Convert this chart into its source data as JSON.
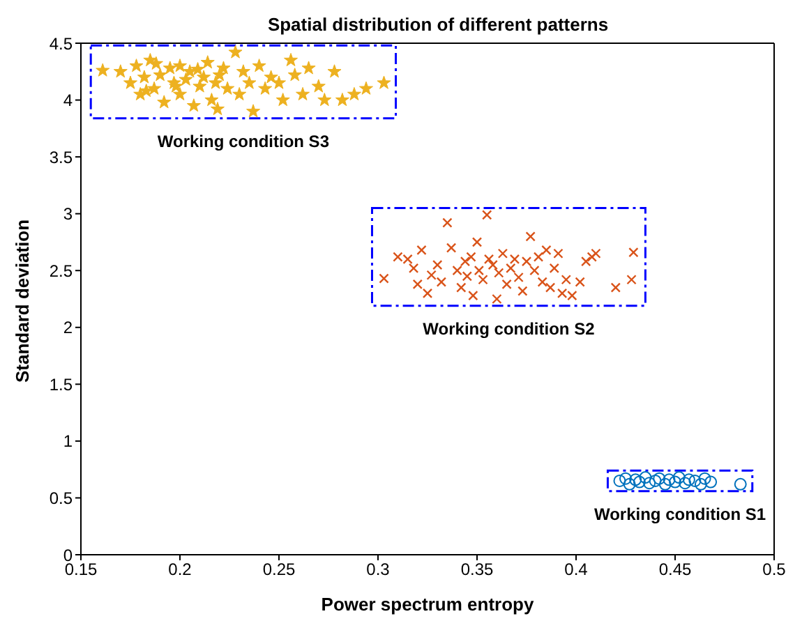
{
  "chart_data": {
    "type": "scatter",
    "title": "Spatial distribution of different patterns",
    "xlabel": "Power spectrum entropy",
    "ylabel": "Standard deviation",
    "xlim": [
      0.15,
      0.5
    ],
    "xticks": [
      0.15,
      0.2,
      0.25,
      0.3,
      0.35,
      0.4,
      0.45,
      0.5
    ],
    "ylim": [
      0,
      4.5
    ],
    "yticks": [
      0,
      0.5,
      1,
      1.5,
      2,
      2.5,
      3,
      3.5,
      4,
      4.5
    ],
    "grid": false,
    "legend": false,
    "series": [
      {
        "color": "#edb120",
        "marker": "star",
        "x": [
          0.161,
          0.17,
          0.175,
          0.178,
          0.18,
          0.182,
          0.185,
          0.187,
          0.19,
          0.192,
          0.195,
          0.197,
          0.2,
          0.2,
          0.203,
          0.205,
          0.207,
          0.21,
          0.212,
          0.214,
          0.216,
          0.218,
          0.219,
          0.22,
          0.222,
          0.224,
          0.228,
          0.23,
          0.232,
          0.235,
          0.237,
          0.24,
          0.243,
          0.246,
          0.25,
          0.252,
          0.256,
          0.258,
          0.262,
          0.265,
          0.27,
          0.273,
          0.278,
          0.282,
          0.288,
          0.294,
          0.303,
          0.183,
          0.188,
          0.198,
          0.209
        ],
        "values": [
          4.26,
          4.25,
          4.15,
          4.3,
          4.05,
          4.2,
          4.35,
          4.1,
          4.22,
          3.98,
          4.28,
          4.15,
          4.3,
          4.05,
          4.18,
          4.25,
          3.95,
          4.12,
          4.2,
          4.33,
          4.0,
          4.15,
          3.92,
          4.22,
          4.28,
          4.1,
          4.42,
          4.05,
          4.25,
          4.15,
          3.9,
          4.3,
          4.1,
          4.2,
          4.15,
          4.0,
          4.35,
          4.22,
          4.05,
          4.28,
          4.12,
          4.0,
          4.25,
          4.0,
          4.05,
          4.1,
          4.15,
          4.08,
          4.32,
          4.12,
          4.27
        ]
      },
      {
        "color": "#d95319",
        "marker": "cross",
        "x": [
          0.303,
          0.31,
          0.315,
          0.318,
          0.32,
          0.322,
          0.325,
          0.327,
          0.33,
          0.332,
          0.335,
          0.337,
          0.34,
          0.342,
          0.344,
          0.345,
          0.347,
          0.348,
          0.35,
          0.351,
          0.353,
          0.355,
          0.356,
          0.358,
          0.36,
          0.361,
          0.363,
          0.365,
          0.367,
          0.369,
          0.371,
          0.373,
          0.375,
          0.377,
          0.379,
          0.381,
          0.383,
          0.385,
          0.387,
          0.389,
          0.391,
          0.393,
          0.395,
          0.398,
          0.402,
          0.405,
          0.408,
          0.41,
          0.42,
          0.428,
          0.429
        ],
        "values": [
          2.43,
          2.62,
          2.6,
          2.52,
          2.38,
          2.68,
          2.3,
          2.46,
          2.55,
          2.4,
          2.92,
          2.7,
          2.5,
          2.35,
          2.58,
          2.45,
          2.62,
          2.28,
          2.75,
          2.5,
          2.42,
          2.99,
          2.6,
          2.55,
          2.25,
          2.48,
          2.65,
          2.38,
          2.52,
          2.6,
          2.44,
          2.32,
          2.58,
          2.8,
          2.5,
          2.62,
          2.4,
          2.68,
          2.35,
          2.52,
          2.65,
          2.3,
          2.42,
          2.28,
          2.4,
          2.58,
          2.62,
          2.65,
          2.35,
          2.42,
          2.66
        ]
      },
      {
        "color": "#0072bd",
        "marker": "circle",
        "x": [
          0.422,
          0.425,
          0.427,
          0.43,
          0.432,
          0.435,
          0.437,
          0.44,
          0.442,
          0.445,
          0.447,
          0.45,
          0.452,
          0.455,
          0.457,
          0.46,
          0.463,
          0.465,
          0.468,
          0.483
        ],
        "values": [
          0.65,
          0.67,
          0.62,
          0.66,
          0.64,
          0.68,
          0.63,
          0.65,
          0.67,
          0.62,
          0.66,
          0.64,
          0.68,
          0.63,
          0.66,
          0.65,
          0.62,
          0.67,
          0.64,
          0.62
        ]
      }
    ],
    "annotations": [
      "Working condition S3",
      "Working condition S2",
      "Working condition S1"
    ]
  }
}
